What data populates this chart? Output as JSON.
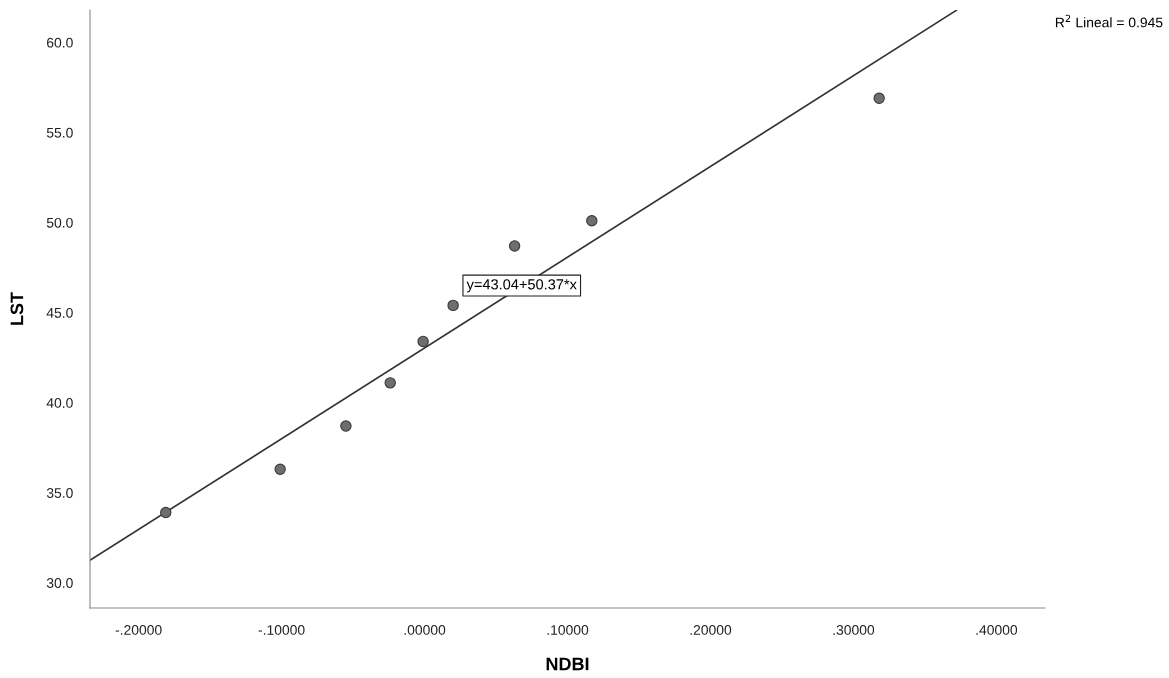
{
  "chart_data": {
    "type": "scatter",
    "xlabel": "NDBI",
    "ylabel": "LST",
    "xlim": [
      -0.234,
      0.434
    ],
    "ylim": [
      28.6,
      61.8
    ],
    "xticks": [
      {
        "value": -0.2,
        "label": "-.20000"
      },
      {
        "value": -0.1,
        "label": "-.10000"
      },
      {
        "value": 0,
        "label": ".00000"
      },
      {
        "value": 0.1,
        "label": ".10000"
      },
      {
        "value": 0.2,
        "label": ".20000"
      },
      {
        "value": 0.3,
        "label": ".30000"
      },
      {
        "value": 0.4,
        "label": ".40000"
      }
    ],
    "yticks": [
      {
        "value": 30,
        "label": "30.0"
      },
      {
        "value": 35,
        "label": "35.0"
      },
      {
        "value": 40,
        "label": "40.0"
      },
      {
        "value": 45,
        "label": "45.0"
      },
      {
        "value": 50,
        "label": "50.0"
      },
      {
        "value": 55,
        "label": "55.0"
      },
      {
        "value": 60,
        "label": "60.0"
      }
    ],
    "grid": false,
    "marker": "circle",
    "series": [
      {
        "color": "#6e6e6e",
        "x": [
          -0.181,
          -0.101,
          -0.055,
          -0.024,
          -0.001,
          0.02,
          0.063,
          0.117,
          0.318
        ],
        "values": [
          33.9,
          36.3,
          38.7,
          41.1,
          43.4,
          45.4,
          48.7,
          50.1,
          56.9
        ]
      },
      {
        "type": "line",
        "color": "#333333",
        "marker": "none",
        "line_style": "solid",
        "x": [
          -0.234,
          0.372
        ],
        "values": [
          31.25,
          61.78
        ]
      }
    ],
    "annotations": [
      {
        "text": "y=43.04+50.37*x",
        "x": 0.068,
        "y": 46.5
      },
      "R$^{2}$ Lineal = 0.945"
    ]
  }
}
